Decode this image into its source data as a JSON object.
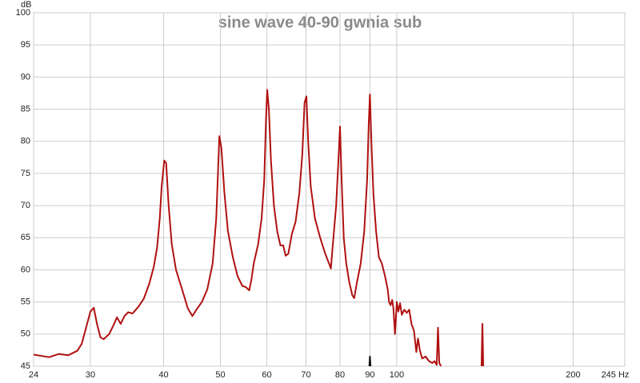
{
  "chart_data": {
    "type": "line",
    "title": "sine wave 40-90 gwnia sub",
    "ylabel": "dB",
    "log_x": true,
    "grid": true,
    "xlim": [
      24,
      245
    ],
    "xticks": [
      24,
      30,
      40,
      50,
      60,
      70,
      80,
      90,
      100,
      200,
      {
        "value": 245,
        "label": "245 Hz"
      }
    ],
    "ylim": [
      45,
      100
    ],
    "yticks": [
      45,
      50,
      55,
      60,
      65,
      70,
      75,
      80,
      85,
      90,
      95,
      100
    ],
    "series": [
      {
        "color": "#b01010",
        "x": [
          24,
          25.5,
          26.5,
          27.5,
          28.5,
          29,
          29.5,
          30,
          30.4,
          30.8,
          31.2,
          31.6,
          32.3,
          32.9,
          33.3,
          33.8,
          34.3,
          34.8,
          35.4,
          36.2,
          37,
          37.8,
          38.5,
          39,
          39.4,
          39.7,
          40.1,
          40.4,
          40.8,
          41.3,
          42,
          43,
          44,
          44.8,
          45.5,
          46.5,
          47.5,
          48.5,
          49.2,
          49.8,
          50.2,
          50.8,
          51.5,
          52.5,
          53.5,
          54.5,
          55.3,
          56,
          56.5,
          57,
          58,
          58.8,
          59.4,
          59.8,
          60.1,
          60.5,
          61,
          61.7,
          62.5,
          63.3,
          64,
          64.6,
          65.3,
          66.2,
          67.2,
          68.2,
          69,
          69.6,
          70.1,
          70.6,
          71.3,
          72.5,
          74,
          75.5,
          76.6,
          77.2,
          77.8,
          78.8,
          79.6,
          80,
          80.5,
          81.2,
          82,
          83,
          84,
          84.6,
          85.5,
          86.8,
          88,
          89,
          89.6,
          90,
          90.5,
          91.2,
          92.2,
          93.2,
          94.3,
          95.5,
          96.5,
          97,
          97.6,
          98.2,
          98.7,
          99.3,
          100,
          100.6,
          101.3,
          102,
          103,
          104,
          105,
          106,
          107,
          108,
          108.7,
          109.5,
          110.5,
          112,
          113.5,
          115,
          116,
          117,
          117.6,
          118.2,
          119,
          130,
          139.5,
          140,
          140.5
        ],
        "values": [
          46.8,
          46.4,
          46.9,
          46.7,
          47.4,
          48.5,
          51,
          53.5,
          54.1,
          51.5,
          49.5,
          49.2,
          50,
          51.5,
          52.6,
          51.6,
          52.8,
          53.4,
          53.2,
          54.2,
          55.5,
          57.8,
          60.5,
          63.5,
          68,
          73,
          77,
          76.6,
          70,
          64,
          60,
          57,
          54,
          52.8,
          53.8,
          55,
          57,
          61,
          68,
          80.8,
          79,
          72,
          66,
          62,
          59,
          57.5,
          57.3,
          56.8,
          58.5,
          61,
          64,
          68,
          74,
          83,
          88,
          85,
          77,
          70,
          66,
          63.8,
          63.8,
          62.2,
          62.5,
          65.5,
          67.5,
          72,
          78,
          86,
          87,
          80,
          73,
          68,
          65,
          62.5,
          61,
          60.2,
          64,
          70,
          78,
          82.3,
          74,
          65,
          61,
          58,
          56,
          55.6,
          58,
          61,
          66,
          74,
          83,
          87.3,
          80,
          72,
          66,
          62,
          61,
          59,
          57,
          55,
          54.5,
          55.3,
          54,
          50,
          55,
          53.5,
          54.8,
          53,
          53.8,
          53.3,
          53.8,
          51.5,
          50.5,
          47.2,
          49.3,
          47.5,
          46.2,
          46.5,
          45.8,
          45.5,
          45.8,
          45.2,
          51,
          45.5,
          45,
          null,
          45,
          51.6,
          45
        ]
      },
      {
        "color": "#111111",
        "x": [
          89.8,
          90,
          90.2
        ],
        "values": [
          45,
          46.5,
          45
        ]
      }
    ]
  }
}
